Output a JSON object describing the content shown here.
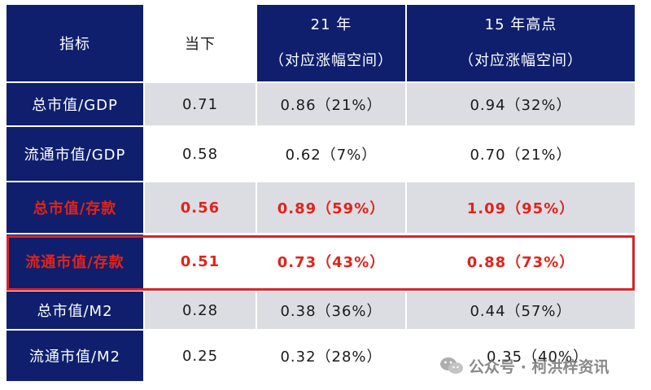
{
  "header": {
    "col0": "指标",
    "col1": "当下",
    "col2_line1": "21 年",
    "col2_line2": "（对应涨幅空间）",
    "col3_line1": "15 年高点",
    "col3_line2": "（对应涨幅空间）"
  },
  "rows": [
    {
      "label": "总市值/GDP",
      "now": "0.71",
      "y21": "0.86（21%）",
      "y15": "0.94（32%）",
      "highlight": false
    },
    {
      "label": "流通市值/GDP",
      "now": "0.58",
      "y21": "0.62（7%）",
      "y15": "0.70（21%）",
      "highlight": false
    },
    {
      "label": "总市值/存款",
      "now": "0.56",
      "y21": "0.89（59%）",
      "y15": "1.09（95%）",
      "highlight": true
    },
    {
      "label": "流通市值/存款",
      "now": "0.51",
      "y21": "0.73（43%）",
      "y15": "0.88（73%）",
      "highlight": true
    },
    {
      "label": "总市值/M2",
      "now": "0.28",
      "y21": "0.38（36%）",
      "y15": "0.44（57%）",
      "highlight": false
    },
    {
      "label": "流通市值/M2",
      "now": "0.25",
      "y21": "0.32（28%）",
      "y15": "0.35（40%）",
      "highlight": false
    }
  ],
  "watermark": {
    "icon": "wechat-icon",
    "text": "公众号 · 柯洪梓资讯"
  },
  "colors": {
    "header_bg": "#0f1f6e",
    "shade_bg": "#dcdde3",
    "highlight_red": "#e2231a",
    "box_border": "#d8232a"
  }
}
